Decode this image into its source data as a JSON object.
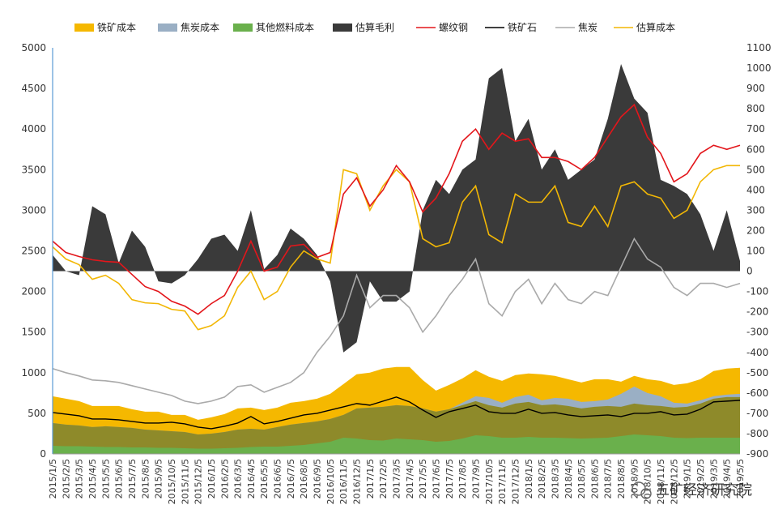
{
  "chart_data": {
    "type": "area",
    "x_categories": [
      "2015/1/5",
      "2015/2/5",
      "2015/3/5",
      "2015/4/5",
      "2015/5/5",
      "2015/6/5",
      "2015/7/5",
      "2015/8/5",
      "2015/9/5",
      "2015/10/5",
      "2015/11/5",
      "2015/12/5",
      "2016/1/5",
      "2016/2/5",
      "2016/3/5",
      "2016/4/5",
      "2016/5/5",
      "2016/6/5",
      "2016/7/5",
      "2016/8/5",
      "2016/9/5",
      "2016/10/5",
      "2016/11/5",
      "2016/12/5",
      "2017/1/5",
      "2017/2/5",
      "2017/3/5",
      "2017/4/5",
      "2017/5/5",
      "2017/6/5",
      "2017/7/5",
      "2017/8/5",
      "2017/9/5",
      "2017/10/5",
      "2017/11/5",
      "2017/12/5",
      "2018/1/5",
      "2018/2/5",
      "2018/3/5",
      "2018/4/5",
      "2018/5/5",
      "2018/6/5",
      "2018/7/5",
      "2018/8/5",
      "2018/9/5",
      "2018/10/5",
      "2018/11/5",
      "2018/12/5",
      "2019/1/5",
      "2019/2/5",
      "2019/3/5",
      "2019/4/5",
      "2019/5/5"
    ],
    "left_axis": {
      "min": 0,
      "max": 5000,
      "ticks": [
        0,
        500,
        1000,
        1500,
        2000,
        2500,
        3000,
        3500,
        4000,
        4500,
        5000
      ]
    },
    "right_axis": {
      "min": -900,
      "max": 1100,
      "ticks": [
        -900,
        -800,
        -700,
        -600,
        -500,
        -400,
        -300,
        -200,
        -100,
        0,
        100,
        200,
        300,
        400,
        500,
        600,
        700,
        800,
        900,
        1000,
        1100
      ]
    },
    "legend": {
      "position": "top"
    },
    "series": [
      {
        "name": "铁矿成本",
        "kind": "stacked-area",
        "axis": "left",
        "color": "#F5B800",
        "values": [
          330,
          320,
          300,
          260,
          250,
          260,
          230,
          220,
          230,
          200,
          210,
          180,
          200,
          220,
          260,
          260,
          240,
          240,
          270,
          270,
          280,
          310,
          380,
          420,
          430,
          470,
          470,
          480,
          350,
          260,
          300,
          330,
          380,
          350,
          330,
          350,
          350,
          380,
          350,
          330,
          320,
          340,
          330,
          310,
          340,
          320,
          310,
          280,
          290,
          300,
          340,
          350,
          360
        ]
      },
      {
        "name": "焦炭成本",
        "kind": "stacked-area",
        "axis": "left",
        "color": "#9AAFC4",
        "values": [
          0,
          0,
          0,
          0,
          0,
          0,
          0,
          0,
          0,
          0,
          0,
          0,
          0,
          0,
          0,
          0,
          0,
          0,
          0,
          0,
          0,
          0,
          0,
          0,
          0,
          0,
          0,
          0,
          0,
          0,
          0,
          30,
          60,
          90,
          60,
          80,
          90,
          60,
          80,
          90,
          80,
          70,
          80,
          160,
          210,
          150,
          120,
          60,
          40,
          40,
          30,
          30,
          40
        ]
      },
      {
        "name": "其他燃料成本",
        "kind": "stacked-area",
        "axis": "left",
        "color": "#6AB04C",
        "values": [
          100,
          95,
          95,
          90,
          85,
          85,
          80,
          80,
          75,
          75,
          70,
          65,
          65,
          70,
          75,
          85,
          90,
          90,
          100,
          110,
          130,
          150,
          200,
          190,
          170,
          165,
          190,
          180,
          170,
          150,
          160,
          190,
          230,
          220,
          200,
          200,
          210,
          200,
          200,
          195,
          190,
          195,
          200,
          220,
          240,
          230,
          220,
          200,
          195,
          200,
          200,
          200,
          200
        ]
      },
      {
        "name": "焦炭成本_overlap",
        "kind": "stacked-area-base",
        "axis": "left",
        "color": "#8E8A2A",
        "values": [
          380,
          360,
          350,
          330,
          340,
          330,
          320,
          300,
          290,
          280,
          270,
          240,
          250,
          270,
          300,
          310,
          300,
          330,
          360,
          380,
          400,
          430,
          480,
          560,
          570,
          580,
          600,
          590,
          560,
          520,
          550,
          600,
          650,
          600,
          570,
          620,
          640,
          600,
          610,
          590,
          560,
          580,
          590,
          580,
          620,
          600,
          590,
          570,
          580,
          620,
          680,
          700,
          700
        ]
      },
      {
        "name": "估算毛利",
        "kind": "area",
        "axis": "right",
        "color": "#3A3A3A",
        "values": [
          80,
          0,
          -20,
          320,
          280,
          40,
          200,
          120,
          -50,
          -60,
          -20,
          60,
          160,
          180,
          100,
          300,
          10,
          80,
          210,
          160,
          80,
          -50,
          -400,
          -350,
          -50,
          -150,
          -150,
          -100,
          300,
          450,
          380,
          500,
          550,
          950,
          1000,
          640,
          750,
          500,
          600,
          450,
          500,
          550,
          750,
          1020,
          850,
          780,
          450,
          420,
          380,
          280,
          100,
          300,
          50
        ]
      },
      {
        "name": "螺纹钢",
        "kind": "line",
        "axis": "left",
        "color": "#E3161B",
        "values": [
          2620,
          2480,
          2430,
          2390,
          2370,
          2360,
          2210,
          2060,
          2000,
          1880,
          1820,
          1720,
          1850,
          1950,
          2250,
          2620,
          2250,
          2300,
          2560,
          2580,
          2420,
          2480,
          3200,
          3400,
          3050,
          3250,
          3550,
          3350,
          2980,
          3150,
          3450,
          3850,
          4000,
          3750,
          3950,
          3850,
          3880,
          3650,
          3650,
          3600,
          3500,
          3650,
          3900,
          4150,
          4300,
          3900,
          3700,
          3350,
          3450,
          3700,
          3800,
          3750,
          3800
        ]
      },
      {
        "name": "铁矿石",
        "kind": "line",
        "axis": "left",
        "color": "#000000",
        "values": [
          510,
          490,
          470,
          430,
          430,
          420,
          400,
          380,
          380,
          390,
          370,
          330,
          310,
          340,
          380,
          460,
          370,
          400,
          440,
          480,
          500,
          540,
          580,
          620,
          600,
          650,
          700,
          640,
          540,
          450,
          520,
          560,
          600,
          520,
          500,
          500,
          550,
          500,
          510,
          480,
          460,
          470,
          480,
          460,
          500,
          500,
          520,
          480,
          490,
          550,
          640,
          650,
          660
        ]
      },
      {
        "name": "焦炭",
        "kind": "line",
        "axis": "left",
        "color": "#AAAAAA",
        "values": [
          1050,
          1000,
          960,
          910,
          900,
          880,
          840,
          800,
          760,
          720,
          650,
          620,
          650,
          700,
          830,
          850,
          760,
          820,
          880,
          1000,
          1250,
          1450,
          1700,
          2200,
          1800,
          1950,
          1950,
          1800,
          1500,
          1700,
          1950,
          2150,
          2400,
          1850,
          1700,
          2000,
          2150,
          1850,
          2100,
          1900,
          1850,
          2000,
          1950,
          2300,
          2650,
          2400,
          2300,
          2050,
          1950,
          2100,
          2100,
          2050,
          2100
        ]
      },
      {
        "name": "估算成本",
        "kind": "line",
        "axis": "left",
        "color": "#F2B705",
        "values": [
          2550,
          2400,
          2330,
          2150,
          2200,
          2100,
          1900,
          1860,
          1850,
          1780,
          1760,
          1530,
          1580,
          1700,
          2050,
          2250,
          1900,
          2000,
          2300,
          2500,
          2400,
          2350,
          3500,
          3450,
          3000,
          3300,
          3500,
          3350,
          2650,
          2550,
          2600,
          3100,
          3300,
          2700,
          2600,
          3200,
          3100,
          3100,
          3300,
          2850,
          2800,
          3050,
          2800,
          3300,
          3350,
          3200,
          3150,
          2900,
          3000,
          3350,
          3500,
          3550,
          3550
        ]
      }
    ]
  },
  "legend_items": [
    {
      "label": "铁矿成本",
      "kind": "box",
      "color": "#F5B800"
    },
    {
      "label": "焦炭成本",
      "kind": "box",
      "color": "#9AAFC4"
    },
    {
      "label": "其他燃料成本",
      "kind": "box",
      "color": "#6AB04C"
    },
    {
      "label": "估算毛利",
      "kind": "box",
      "color": "#3A3A3A"
    },
    {
      "label": "螺纹钢",
      "kind": "line",
      "color": "#E3161B"
    },
    {
      "label": "铁矿石",
      "kind": "line",
      "color": "#000000"
    },
    {
      "label": "焦炭",
      "kind": "line",
      "color": "#AAAAAA"
    },
    {
      "label": "估算成本",
      "kind": "line",
      "color": "#F2B705"
    }
  ],
  "watermark": {
    "text": "五矿经济研究院",
    "icon": "wechat-icon"
  }
}
